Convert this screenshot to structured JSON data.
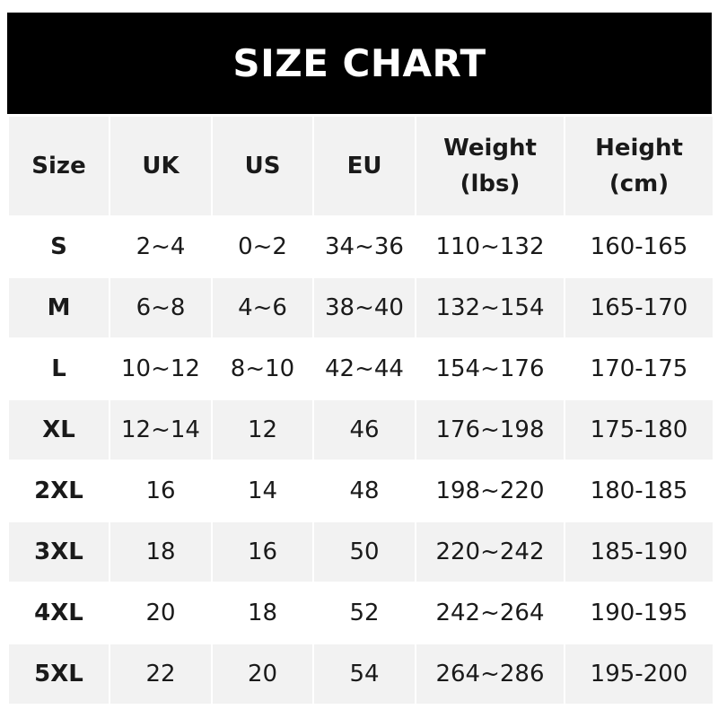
{
  "title": "SIZE CHART",
  "columns": [
    {
      "line1": "Size",
      "line2": ""
    },
    {
      "line1": "UK",
      "line2": ""
    },
    {
      "line1": "US",
      "line2": ""
    },
    {
      "line1": "EU",
      "line2": ""
    },
    {
      "line1": "Weight",
      "line2": "(lbs)"
    },
    {
      "line1": "Height",
      "line2": "(cm)"
    }
  ],
  "rows": [
    [
      "S",
      "2~4",
      "0~2",
      "34~36",
      "110~132",
      "160-165"
    ],
    [
      "M",
      "6~8",
      "4~6",
      "38~40",
      "132~154",
      "165-170"
    ],
    [
      "L",
      "10~12",
      "8~10",
      "42~44",
      "154~176",
      "170-175"
    ],
    [
      "XL",
      "12~14",
      "12",
      "46",
      "176~198",
      "175-180"
    ],
    [
      "2XL",
      "16",
      "14",
      "48",
      "198~220",
      "180-185"
    ],
    [
      "3XL",
      "18",
      "16",
      "50",
      "220~242",
      "185-190"
    ],
    [
      "4XL",
      "20",
      "18",
      "52",
      "242~264",
      "190-195"
    ],
    [
      "5XL",
      "22",
      "20",
      "54",
      "264~286",
      "195-200"
    ]
  ],
  "colors": {
    "header_bg": "#000000",
    "stripe": "#f2f2f2"
  }
}
